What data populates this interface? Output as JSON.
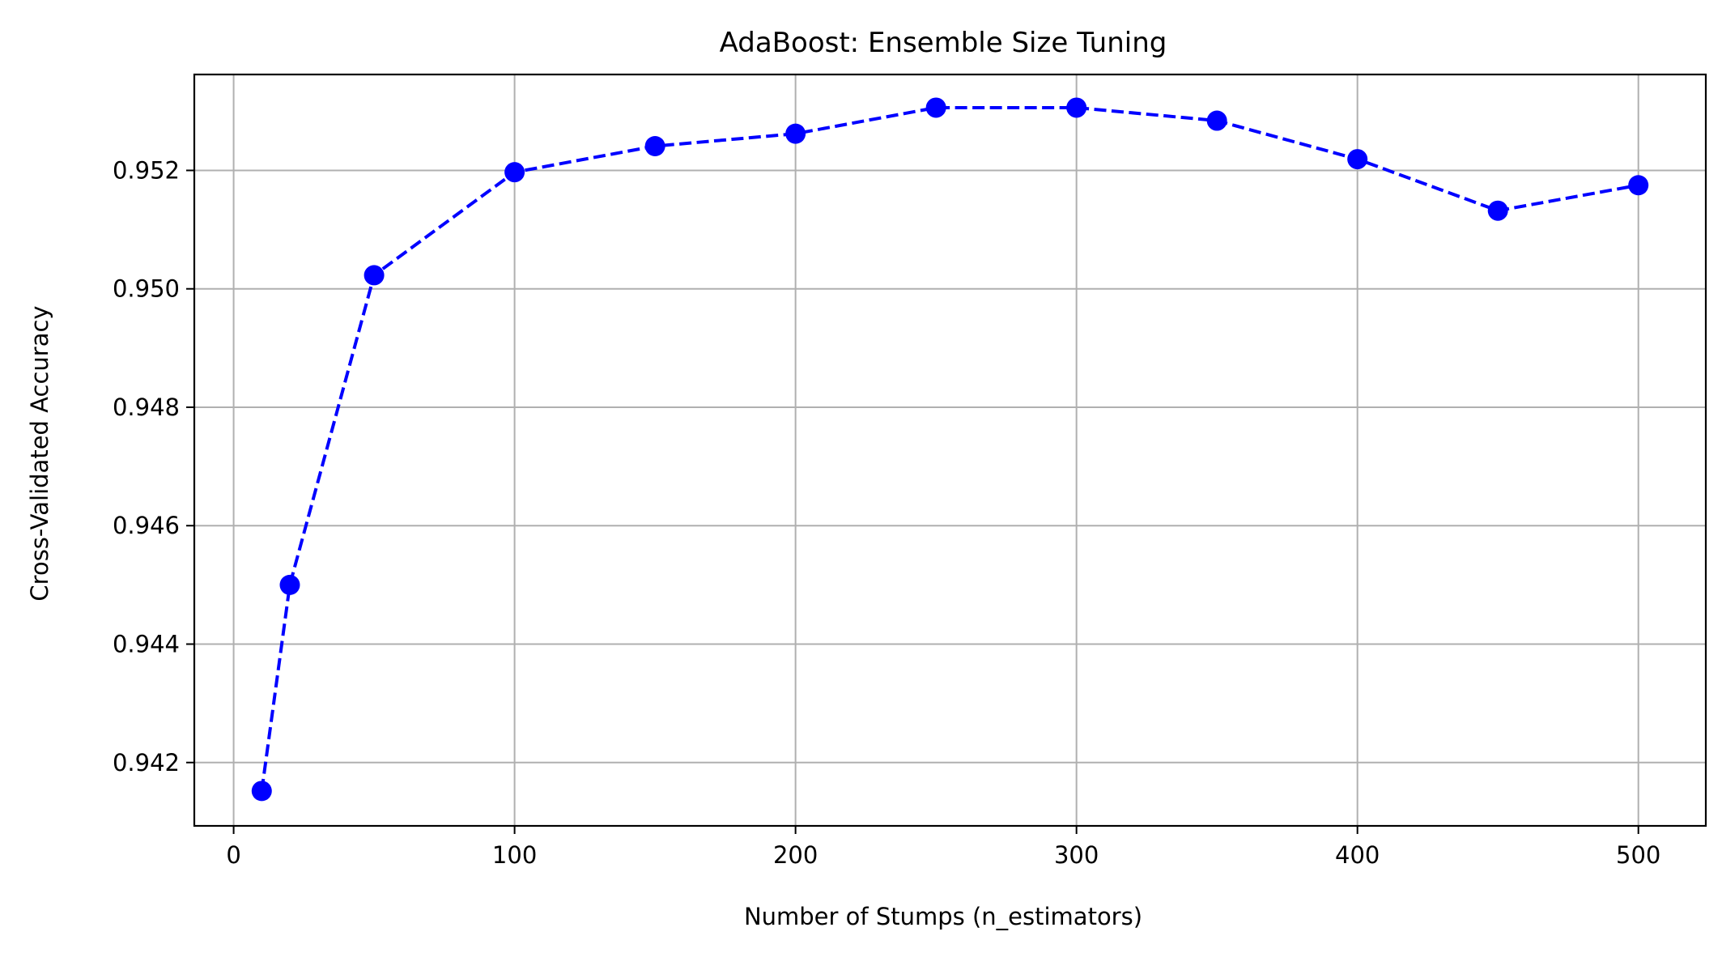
{
  "chart_data": {
    "type": "line",
    "title": "AdaBoost: Ensemble Size Tuning",
    "xlabel": "Number of Stumps (n_estimators)",
    "ylabel": "Cross-Validated Accuracy",
    "xlim": [
      -14,
      524
    ],
    "ylim": [
      0.94093,
      0.95362
    ],
    "xticks": [
      0,
      100,
      200,
      300,
      400,
      500
    ],
    "xtick_labels": [
      "0",
      "100",
      "200",
      "300",
      "400",
      "500"
    ],
    "yticks": [
      0.942,
      0.944,
      0.946,
      0.948,
      0.95,
      0.952
    ],
    "ytick_labels": [
      "0.942",
      "0.944",
      "0.946",
      "0.948",
      "0.950",
      "0.952"
    ],
    "grid": true,
    "series": [
      {
        "x": [
          10,
          20,
          50,
          100,
          150,
          200,
          250,
          300,
          350,
          400,
          450,
          500
        ],
        "y": [
          0.94152,
          0.945,
          0.95023,
          0.95197,
          0.95241,
          0.95262,
          0.95306,
          0.95306,
          0.95284,
          0.95219,
          0.95132,
          0.95175
        ],
        "color": "#0000ff",
        "linestyle": "dashed",
        "marker": "circle"
      }
    ]
  }
}
